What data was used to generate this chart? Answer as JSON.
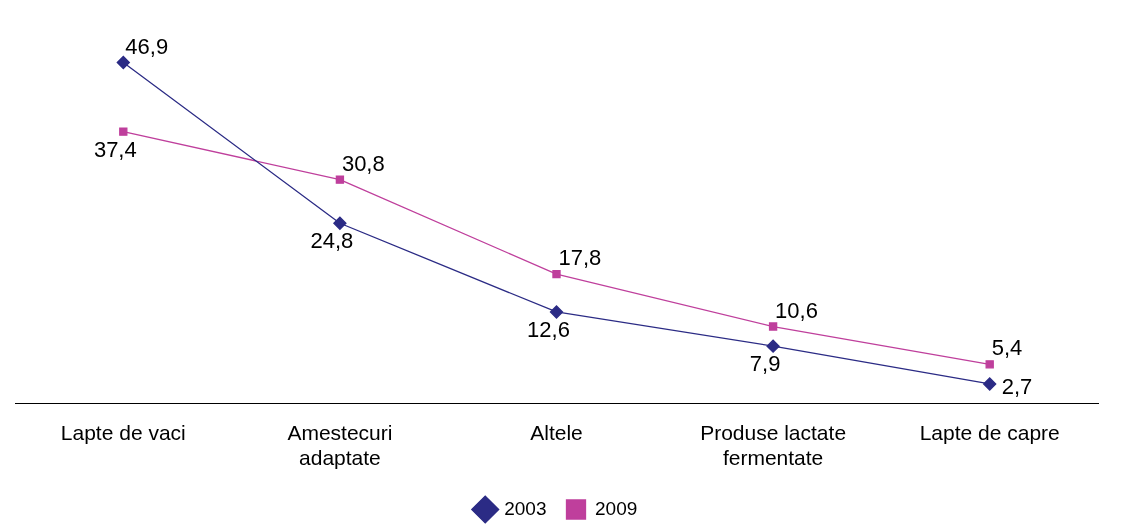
{
  "chart_data": {
    "type": "line",
    "categories": [
      "Lapte de vaci",
      "Amestecuri adaptate",
      "Altele",
      "Produse lactate fermentate",
      "Lapte de capre"
    ],
    "series": [
      {
        "name": "2003",
        "color": "#2b2b85",
        "marker": "diamond",
        "values": [
          46.9,
          24.8,
          12.6,
          7.9,
          2.7
        ],
        "value_labels": [
          "46,9",
          "24,8",
          "12,6",
          "7,9",
          "2,7"
        ]
      },
      {
        "name": "2009",
        "color": "#bf3f9c",
        "marker": "square",
        "values": [
          37.4,
          30.8,
          17.8,
          10.6,
          5.4
        ],
        "value_labels": [
          "37,4",
          "30,8",
          "17,8",
          "10,6",
          "5,4"
        ]
      }
    ],
    "legend": "bottom",
    "grid": false
  }
}
